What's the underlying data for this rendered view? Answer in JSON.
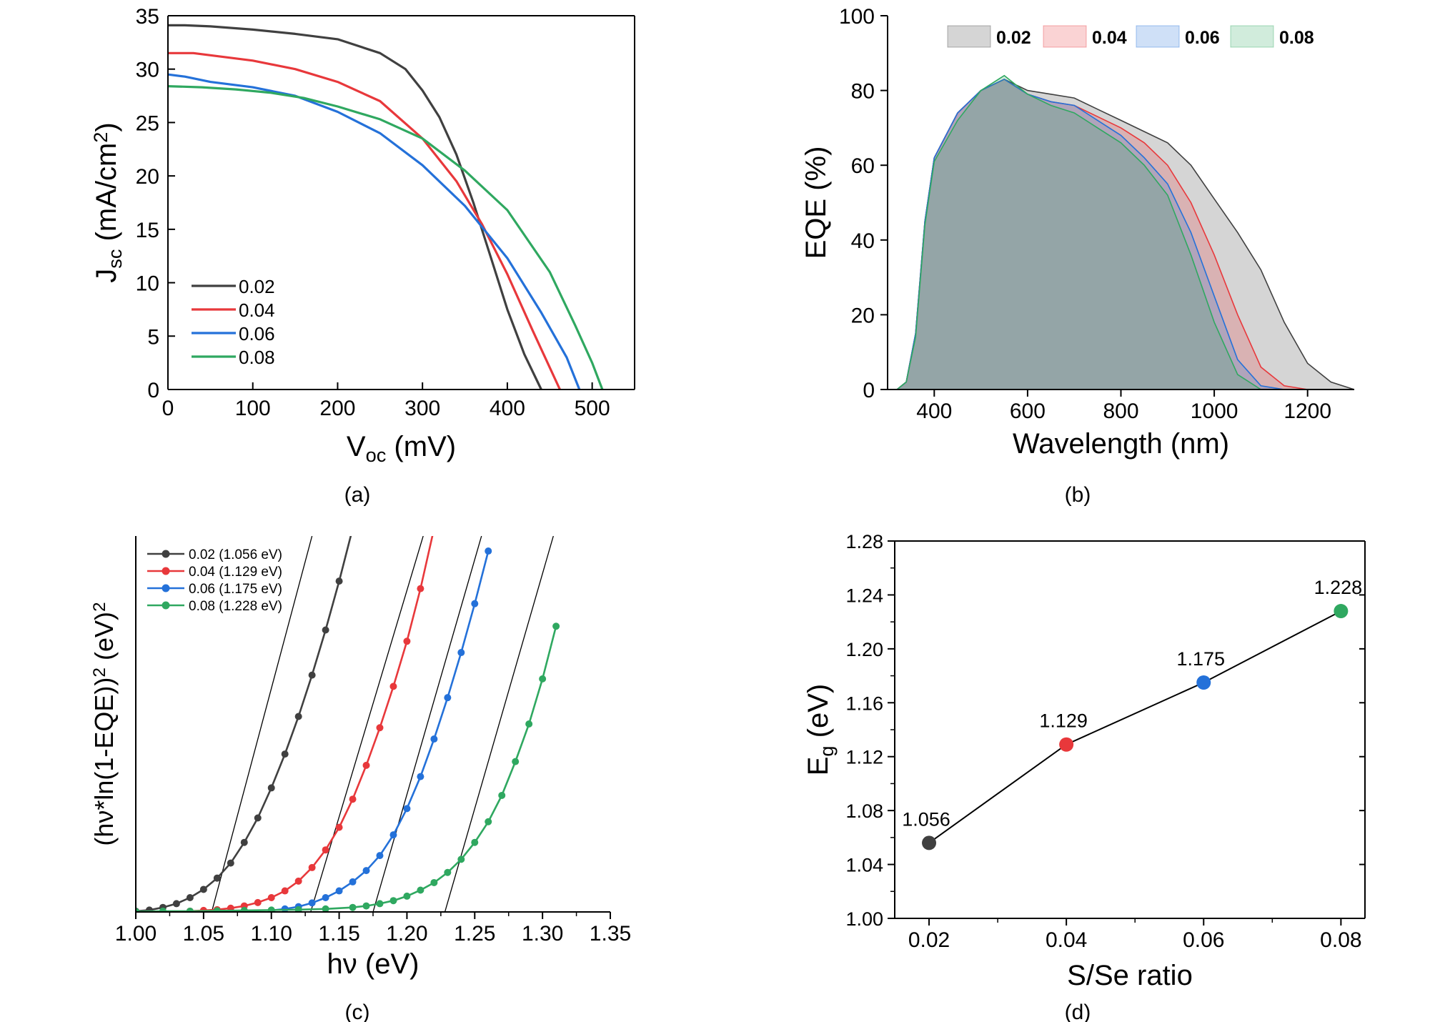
{
  "colors": {
    "s002": "#404040",
    "s004": "#e8383b",
    "s006": "#2471d9",
    "s008": "#2fa860",
    "axis": "#000000"
  },
  "chart_data": [
    {
      "id": "a",
      "type": "line",
      "panel_label": "(a)",
      "xlabel": {
        "main": "V",
        "sub": "oc",
        "rest": " (mV)"
      },
      "ylabel": {
        "main": "J",
        "sub": "sc",
        "rest": " (mA/cm",
        "sup": "2",
        "end": ")"
      },
      "xlim": [
        0,
        550
      ],
      "ylim": [
        0,
        35
      ],
      "xticks": [
        0,
        100,
        200,
        300,
        400,
        500
      ],
      "yticks": [
        0,
        5,
        10,
        15,
        20,
        25,
        30,
        35
      ],
      "legend_position": "lower-left",
      "series": [
        {
          "name": "0.02",
          "color_key": "s002",
          "x": [
            0,
            20,
            50,
            100,
            150,
            200,
            250,
            280,
            300,
            320,
            340,
            360,
            380,
            400,
            420,
            440
          ],
          "y": [
            34.1,
            34.1,
            34.0,
            33.7,
            33.3,
            32.8,
            31.5,
            30.0,
            28.0,
            25.5,
            22.0,
            17.5,
            12.5,
            7.5,
            3.3,
            0
          ]
        },
        {
          "name": "0.04",
          "color_key": "s004",
          "x": [
            0,
            30,
            60,
            100,
            150,
            200,
            250,
            300,
            340,
            370,
            400,
            430,
            462
          ],
          "y": [
            31.5,
            31.5,
            31.2,
            30.8,
            30.0,
            28.8,
            27.0,
            23.5,
            19.5,
            15.5,
            10.8,
            5.5,
            0
          ]
        },
        {
          "name": "0.06",
          "color_key": "s006",
          "x": [
            0,
            20,
            50,
            100,
            150,
            200,
            250,
            300,
            350,
            400,
            440,
            470,
            485
          ],
          "y": [
            29.5,
            29.3,
            28.8,
            28.3,
            27.5,
            26.0,
            24.0,
            21.0,
            17.2,
            12.3,
            7.2,
            3.0,
            0
          ]
        },
        {
          "name": "0.08",
          "color_key": "s008",
          "x": [
            0,
            40,
            80,
            120,
            160,
            200,
            250,
            300,
            350,
            400,
            450,
            480,
            500,
            512
          ],
          "y": [
            28.4,
            28.3,
            28.1,
            27.8,
            27.3,
            26.5,
            25.3,
            23.5,
            20.5,
            16.8,
            11.0,
            6.0,
            2.5,
            0
          ]
        }
      ]
    },
    {
      "id": "b",
      "type": "area",
      "panel_label": "(b)",
      "xlabel": "Wavelength (nm)",
      "ylabel": "EQE (%)",
      "xlim": [
        300,
        1300
      ],
      "ylim": [
        0,
        100
      ],
      "xticks": [
        400,
        600,
        800,
        1000,
        1200
      ],
      "yticks": [
        0,
        20,
        40,
        60,
        80,
        100
      ],
      "legend_position": "top",
      "series": [
        {
          "name": "0.02",
          "color_key": "s002",
          "x": [
            320,
            340,
            360,
            380,
            400,
            450,
            500,
            550,
            600,
            650,
            700,
            750,
            800,
            850,
            900,
            950,
            1000,
            1050,
            1100,
            1150,
            1200,
            1250,
            1300
          ],
          "y": [
            0,
            2,
            15,
            45,
            62,
            74,
            80,
            83,
            80,
            79,
            78,
            75,
            72,
            69,
            66,
            60,
            51,
            42,
            32,
            18,
            7,
            2,
            0
          ]
        },
        {
          "name": "0.04",
          "color_key": "s004",
          "x": [
            320,
            340,
            360,
            380,
            400,
            450,
            500,
            550,
            600,
            650,
            700,
            750,
            800,
            850,
            900,
            950,
            1000,
            1050,
            1100,
            1150,
            1200
          ],
          "y": [
            0,
            2,
            15,
            45,
            62,
            74,
            80,
            83,
            79,
            77,
            76,
            73,
            70,
            66,
            60,
            50,
            36,
            20,
            6,
            1,
            0
          ]
        },
        {
          "name": "0.06",
          "color_key": "s006",
          "x": [
            320,
            340,
            360,
            380,
            400,
            450,
            500,
            550,
            600,
            650,
            700,
            750,
            800,
            850,
            900,
            950,
            1000,
            1050,
            1100,
            1150
          ],
          "y": [
            0,
            2,
            15,
            45,
            62,
            74,
            80,
            83,
            79,
            77,
            76,
            72,
            68,
            62,
            55,
            42,
            25,
            8,
            1,
            0
          ]
        },
        {
          "name": "0.08",
          "color_key": "s008",
          "x": [
            320,
            340,
            360,
            380,
            400,
            450,
            500,
            550,
            600,
            650,
            700,
            750,
            800,
            850,
            900,
            950,
            1000,
            1050,
            1100
          ],
          "y": [
            0,
            2,
            14,
            44,
            61,
            72,
            80,
            84,
            79,
            76,
            74,
            70,
            66,
            60,
            52,
            36,
            18,
            4,
            0
          ]
        }
      ]
    },
    {
      "id": "c",
      "type": "scatter",
      "panel_label": "(c)",
      "xlabel": "hν (eV)",
      "ylabel": {
        "main": "(hν*ln(1-EQE))",
        "sup": "2",
        "rest": " (eV)",
        "sup2": "2"
      },
      "xlim": [
        1.0,
        1.35
      ],
      "ylim": [
        0,
        1
      ],
      "xticks": [
        "1.00",
        "1.05",
        "1.10",
        "1.15",
        "1.20",
        "1.25",
        "1.30",
        "1.35"
      ],
      "legend_position": "top-left",
      "series": [
        {
          "name": "0.02 (1.056 eV)",
          "color_key": "s002",
          "eg": 1.056,
          "tangent_x1": 1.13,
          "x": [
            1.0,
            1.01,
            1.02,
            1.03,
            1.04,
            1.05,
            1.06,
            1.07,
            1.08,
            1.09,
            1.1,
            1.11,
            1.12,
            1.13,
            1.14,
            1.15,
            1.16
          ],
          "y": [
            0.002,
            0.005,
            0.012,
            0.022,
            0.038,
            0.06,
            0.09,
            0.13,
            0.185,
            0.25,
            0.33,
            0.42,
            0.52,
            0.63,
            0.75,
            0.88,
            1.02
          ]
        },
        {
          "name": "0.04 (1.129 eV)",
          "color_key": "s004",
          "eg": 1.129,
          "tangent_x1": 1.212,
          "x": [
            1.04,
            1.05,
            1.06,
            1.07,
            1.08,
            1.09,
            1.1,
            1.11,
            1.12,
            1.13,
            1.14,
            1.15,
            1.16,
            1.17,
            1.18,
            1.19,
            1.2,
            1.21,
            1.22
          ],
          "y": [
            0.002,
            0.004,
            0.006,
            0.01,
            0.016,
            0.025,
            0.038,
            0.056,
            0.082,
            0.118,
            0.165,
            0.225,
            0.3,
            0.39,
            0.49,
            0.6,
            0.72,
            0.86,
            1.02
          ]
        },
        {
          "name": "0.06 (1.175 eV)",
          "color_key": "s006",
          "eg": 1.175,
          "tangent_x1": 1.255,
          "x": [
            1.1,
            1.11,
            1.12,
            1.13,
            1.14,
            1.15,
            1.16,
            1.17,
            1.18,
            1.19,
            1.2,
            1.21,
            1.22,
            1.23,
            1.24,
            1.25,
            1.26
          ],
          "y": [
            0.004,
            0.008,
            0.014,
            0.024,
            0.038,
            0.056,
            0.08,
            0.11,
            0.15,
            0.205,
            0.275,
            0.36,
            0.46,
            0.57,
            0.69,
            0.82,
            0.96
          ]
        },
        {
          "name": "0.08 (1.228 eV)",
          "color_key": "s008",
          "eg": 1.228,
          "tangent_x1": 1.308,
          "x": [
            1.0,
            1.02,
            1.04,
            1.06,
            1.08,
            1.1,
            1.12,
            1.14,
            1.16,
            1.17,
            1.18,
            1.19,
            1.2,
            1.21,
            1.22,
            1.23,
            1.24,
            1.25,
            1.26,
            1.27,
            1.28,
            1.29,
            1.3,
            1.31
          ],
          "y": [
            0.001,
            0.002,
            0.002,
            0.003,
            0.004,
            0.005,
            0.006,
            0.008,
            0.012,
            0.016,
            0.022,
            0.03,
            0.042,
            0.058,
            0.078,
            0.105,
            0.14,
            0.185,
            0.24,
            0.31,
            0.4,
            0.5,
            0.62,
            0.76
          ]
        }
      ]
    },
    {
      "id": "d",
      "type": "line",
      "panel_label": "(d)",
      "xlabel": "S/Se ratio",
      "ylabel": {
        "main": "E",
        "sub": "g",
        "rest": " (eV)"
      },
      "xlim": [
        0.015,
        0.0835
      ],
      "ylim": [
        1.0,
        1.28
      ],
      "xticks": [
        "0.02",
        "0.04",
        "0.06",
        "0.08"
      ],
      "yticks": [
        "1.00",
        "1.04",
        "1.08",
        "1.12",
        "1.16",
        "1.20",
        "1.24",
        "1.28"
      ],
      "points": [
        {
          "x": 0.02,
          "y": 1.056,
          "label": "1.056",
          "color_key": "s002"
        },
        {
          "x": 0.04,
          "y": 1.129,
          "label": "1.129",
          "color_key": "s004"
        },
        {
          "x": 0.06,
          "y": 1.175,
          "label": "1.175",
          "color_key": "s006"
        },
        {
          "x": 0.08,
          "y": 1.228,
          "label": "1.228",
          "color_key": "s008"
        }
      ]
    }
  ]
}
